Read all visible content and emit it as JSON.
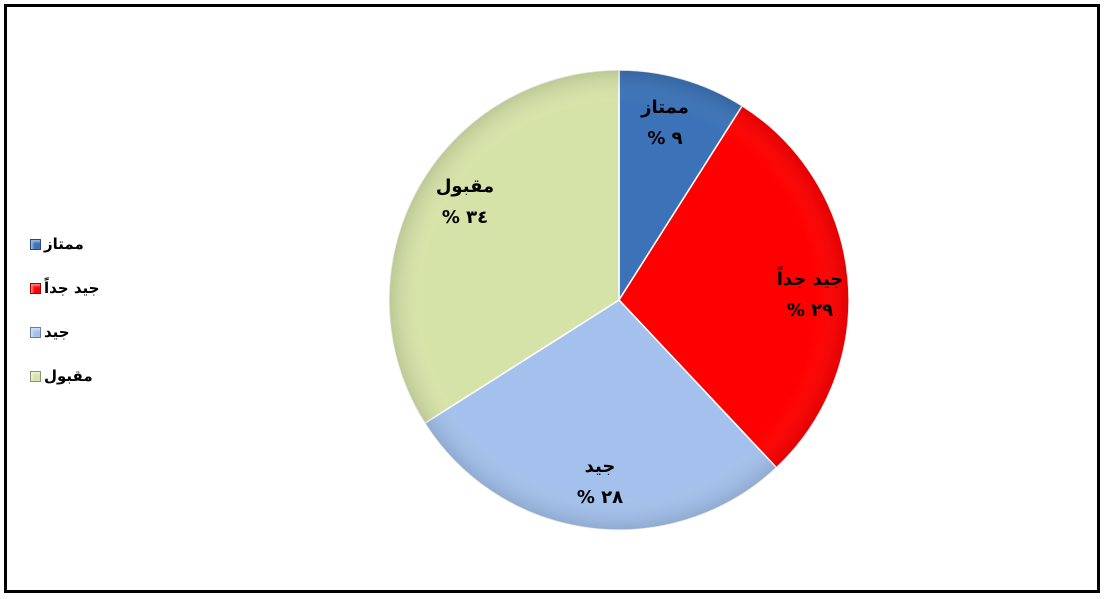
{
  "chart_data": {
    "type": "pie",
    "categories": [
      "ممتاز",
      "جيد جداً",
      "جيد",
      "مقبول"
    ],
    "values": [
      9,
      29,
      28,
      34
    ],
    "value_labels": [
      "% ٩",
      "% ٢٩",
      "% ٢٨",
      "% ٣٤"
    ],
    "colors": [
      "#3c73b8",
      "#ff0000",
      "#a3c1ec",
      "#d6e3a8"
    ],
    "legend": "left",
    "start_angle_deg": 0,
    "direction": "clockwise"
  }
}
